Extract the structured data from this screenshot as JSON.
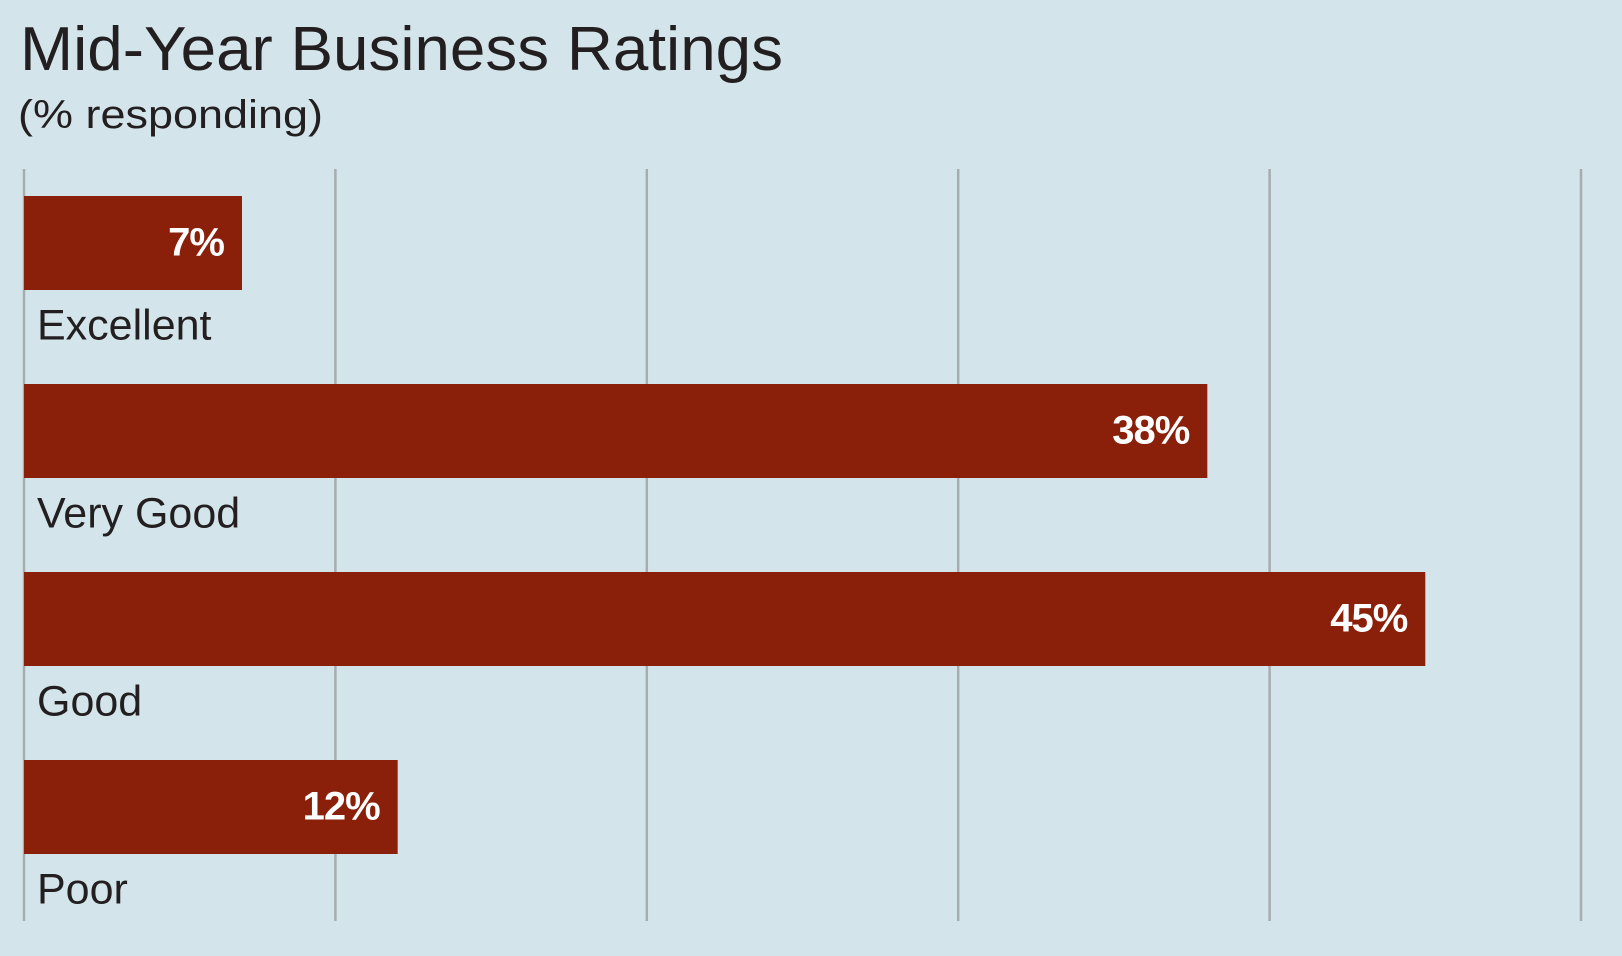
{
  "chart_data": {
    "type": "bar",
    "orientation": "horizontal",
    "title": "Mid-Year Business Ratings",
    "subtitle": "(% responding)",
    "categories": [
      "Excellent",
      "Very Good",
      "Good",
      "Poor"
    ],
    "values": [
      7,
      38,
      45,
      12
    ],
    "value_labels": [
      "7%",
      "38%",
      "45%",
      "12%"
    ],
    "color": "#8a1f0a",
    "xlim": [
      0,
      50
    ],
    "xticks": [
      0,
      10,
      20,
      30,
      40,
      50
    ],
    "grid": true
  }
}
